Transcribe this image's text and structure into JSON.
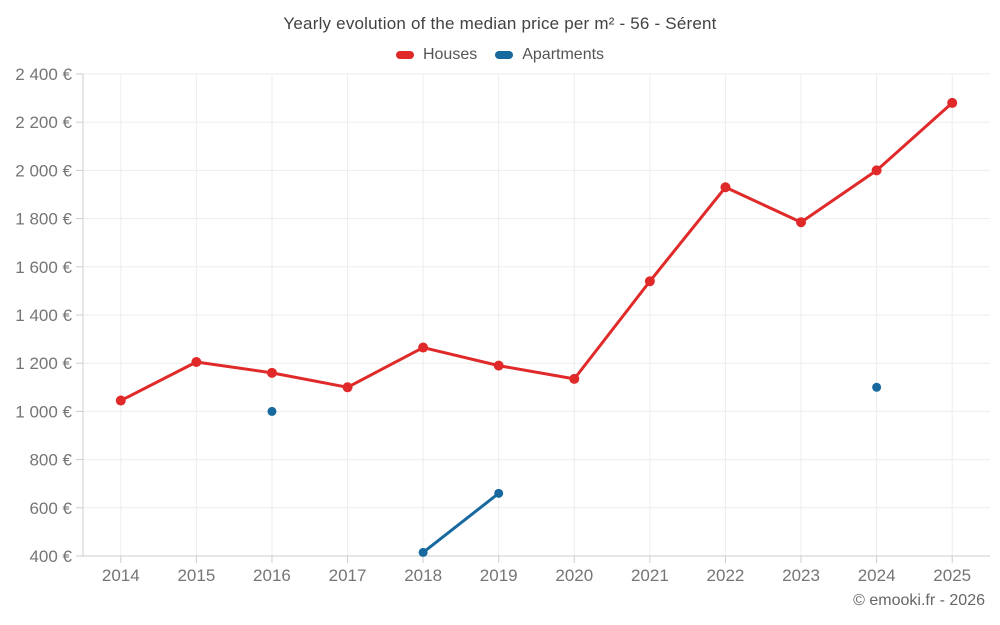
{
  "title": "Yearly evolution of the median price per m² - 56 - Sérent",
  "legend": {
    "items": [
      {
        "label": "Houses",
        "color": "#e02a2a"
      },
      {
        "label": "Apartments",
        "color": "#17699e"
      }
    ]
  },
  "footer": {
    "copyright": "© emooki.fr - 2026"
  },
  "chart_data": {
    "type": "line",
    "title": "Yearly evolution of the median price per m² - 56 - Sérent",
    "categories": [
      "2014",
      "2015",
      "2016",
      "2017",
      "2018",
      "2019",
      "2020",
      "2021",
      "2022",
      "2023",
      "2024",
      "2025"
    ],
    "series": [
      {
        "name": "Houses",
        "color": "#e02a2a",
        "values": [
          1045,
          1205,
          1160,
          1100,
          1265,
          1190,
          1135,
          1540,
          1930,
          1785,
          2000,
          2280
        ]
      },
      {
        "name": "Apartments",
        "color": "#17699e",
        "values": [
          null,
          null,
          1000,
          null,
          415,
          660,
          null,
          null,
          null,
          null,
          1100,
          null
        ]
      }
    ],
    "xlabel": "",
    "ylabel": "",
    "ylim": [
      400,
      2400
    ],
    "ytick_step": 200,
    "ytick_labels": [
      "400 €",
      "600 €",
      "800 €",
      "1 000 €",
      "1 200 €",
      "1 400 €",
      "1 600 €",
      "1 800 €",
      "2 000 €",
      "2 200 €",
      "2 400 €"
    ],
    "grid": true,
    "legend_position": "top",
    "connect_gaps": false
  },
  "colors": {
    "grid": "#ededed",
    "axis": "#cccccc",
    "tick_label": "#757575",
    "title_text": "#424242",
    "legend_text": "#555555",
    "footer_text": "#666666",
    "background": "#ffffff"
  }
}
